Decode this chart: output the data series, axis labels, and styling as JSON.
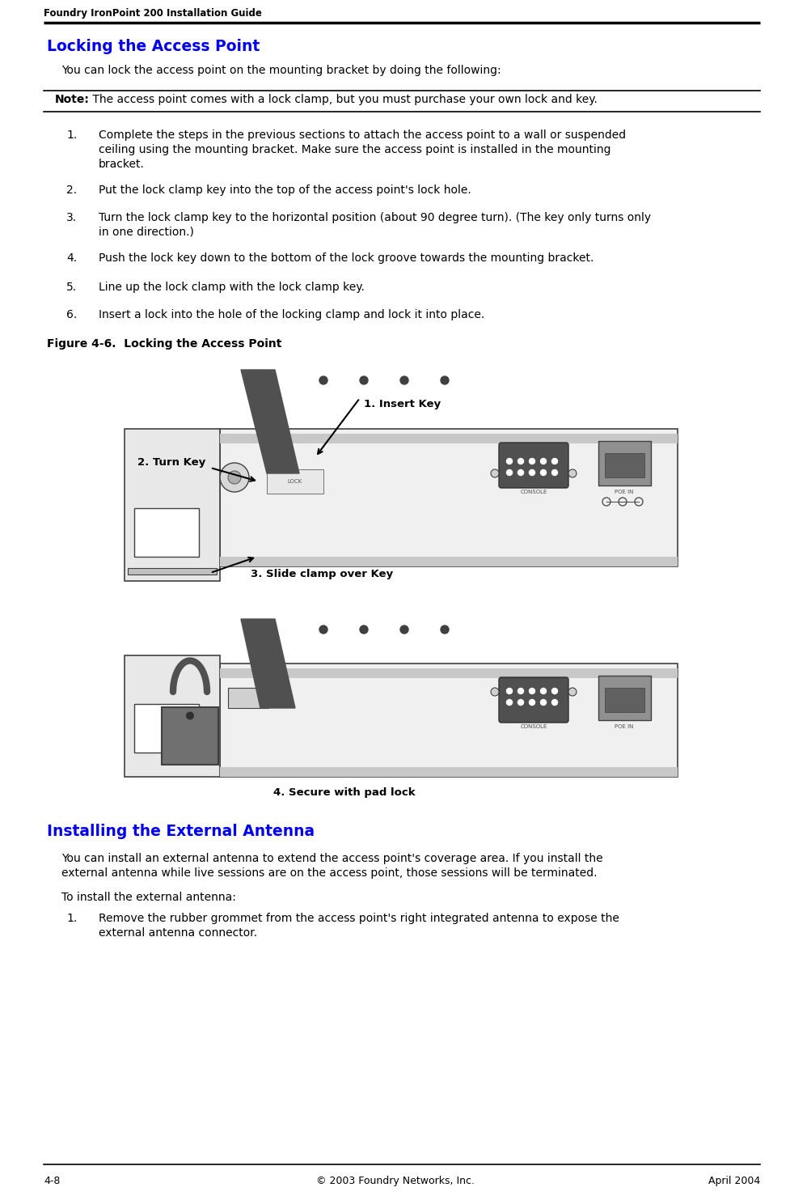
{
  "header_text": "Foundry IronPoint 200 Installation Guide",
  "page_bg": "#ffffff",
  "section1_title": "Locking the Access Point",
  "section1_title_color": "#0000ee",
  "section1_intro": "You can lock the access point on the mounting bracket by doing the following:",
  "note_label": "Note:",
  "note_text": " The access point comes with a lock clamp, but you must purchase your own lock and key.",
  "steps": [
    "Complete the steps in the previous sections to attach the access point to a wall or suspended\nceiling using the mounting bracket. Make sure the access point is installed in the mounting\nbracket.",
    "Put the lock clamp key into the top of the access point's lock hole.",
    "Turn the lock clamp key to the horizontal position (about 90 degree turn). (The key only turns only\nin one direction.)",
    "Push the lock key down to the bottom of the lock groove towards the mounting bracket.",
    "Line up the lock clamp with the lock clamp key.",
    "Insert a lock into the hole of the locking clamp and lock it into place."
  ],
  "figure_caption": "Figure 4-6.  Locking the Access Point",
  "section2_title": "Installing the External Antenna",
  "section2_title_color": "#0000ee",
  "section2_intro1": "You can install an external antenna to extend the access point's coverage area. If you install the",
  "section2_intro2": "external antenna while live sessions are on the access point, those sessions will be terminated.",
  "section2_para": "To install the external antenna:",
  "section2_step1_line1": "Remove the rubber grommet from the access point's right integrated antenna to expose the",
  "section2_step1_line2": "external antenna connector.",
  "footer_left": "4-8",
  "footer_center": "© 2003 Foundry Networks, Inc.",
  "footer_right": "April 2004"
}
